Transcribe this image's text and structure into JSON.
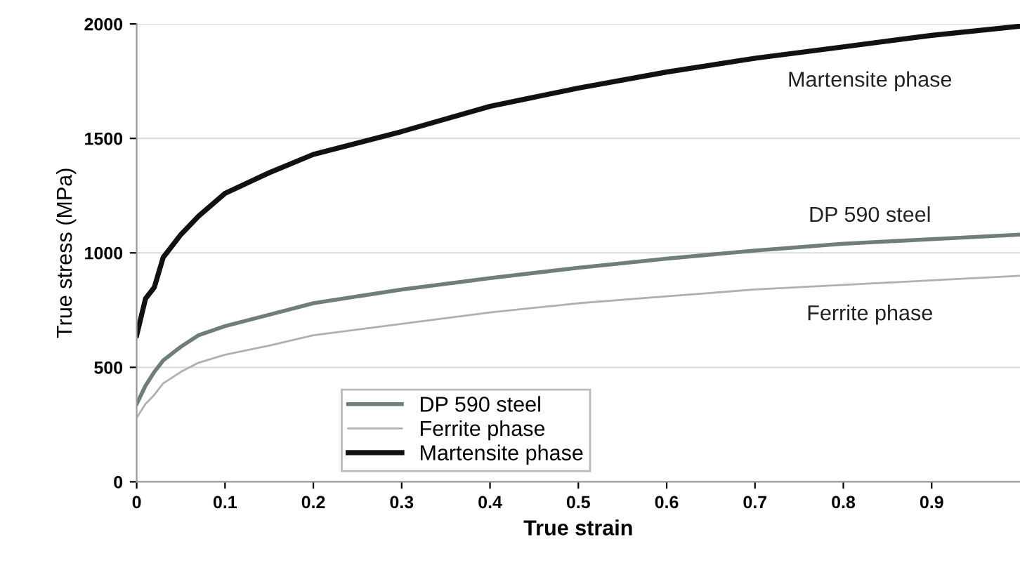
{
  "chart_data": {
    "type": "line",
    "xlabel": "True strain",
    "ylabel": "True stress (MPa)",
    "x": [
      0,
      0.01,
      0.02,
      0.03,
      0.05,
      0.07,
      0.1,
      0.15,
      0.2,
      0.3,
      0.4,
      0.5,
      0.6,
      0.7,
      0.8,
      0.9,
      1.0
    ],
    "series": [
      {
        "name": "DP 590 steel",
        "color": "#6f7f78",
        "values": [
          340,
          420,
          480,
          530,
          590,
          640,
          680,
          730,
          780,
          840,
          890,
          935,
          975,
          1010,
          1040,
          1060,
          1080
        ]
      },
      {
        "name": "Ferrite phase",
        "color": "#b0b0b0",
        "values": [
          280,
          340,
          380,
          430,
          480,
          520,
          555,
          595,
          640,
          690,
          740,
          780,
          810,
          840,
          860,
          880,
          900
        ]
      },
      {
        "name": "Martensite phase",
        "color": "#111111",
        "values": [
          640,
          800,
          850,
          980,
          1080,
          1160,
          1260,
          1350,
          1430,
          1530,
          1640,
          1720,
          1790,
          1850,
          1900,
          1950,
          1990
        ]
      }
    ],
    "annotations": [
      "Martensite phase",
      "DP 590 steel",
      "Ferrite phase"
    ],
    "xlim": [
      0,
      1
    ],
    "xticks": [
      0,
      0.1,
      0.2,
      0.3,
      0.4,
      0.5,
      0.6,
      0.7,
      0.8,
      0.9
    ],
    "ylim": [
      0,
      2000
    ],
    "yticks": [
      0,
      500,
      1000,
      1500,
      2000
    ],
    "grid": "y",
    "legend": "bottom",
    "marker": "none",
    "line_style": "solid"
  }
}
